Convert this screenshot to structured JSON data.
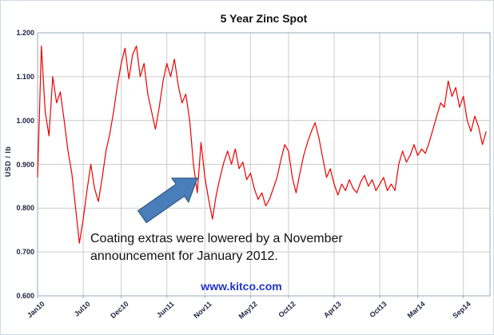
{
  "chart_data": {
    "type": "line",
    "title": "5 Year Zinc Spot",
    "ylabel": "USD / lb",
    "xlabel": "",
    "grid": true,
    "legend": "none",
    "ylim": [
      0.6,
      1.2
    ],
    "xlim": [
      0,
      59.5
    ],
    "y_ticks": [
      1.2,
      1.1,
      1.0,
      0.9,
      0.8,
      0.7,
      0.6
    ],
    "x_ticks": [
      {
        "label": "Jan10",
        "month": 0
      },
      {
        "label": "Jul10",
        "month": 6
      },
      {
        "label": "Dec10",
        "month": 11
      },
      {
        "label": "Jun11",
        "month": 17
      },
      {
        "label": "Nov11",
        "month": 22
      },
      {
        "label": "May12",
        "month": 28
      },
      {
        "label": "Oct12",
        "month": 33
      },
      {
        "label": "Apr13",
        "month": 39
      },
      {
        "label": "Oct13",
        "month": 45
      },
      {
        "label": "Mar14",
        "month": 50
      },
      {
        "label": "Sep14",
        "month": 56
      }
    ],
    "series": [
      {
        "name": "Zinc spot price",
        "color": "#ee0000",
        "x_unit": "months since Jan 2010",
        "x_start": 0,
        "x_step": 0.5,
        "values": [
          0.87,
          1.17,
          1.02,
          0.965,
          1.1,
          1.04,
          1.065,
          1.0,
          0.93,
          0.88,
          0.8,
          0.72,
          0.775,
          0.84,
          0.9,
          0.845,
          0.815,
          0.87,
          0.93,
          0.97,
          1.02,
          1.08,
          1.13,
          1.165,
          1.095,
          1.15,
          1.17,
          1.1,
          1.13,
          1.06,
          1.02,
          0.98,
          1.03,
          1.09,
          1.13,
          1.1,
          1.14,
          1.08,
          1.04,
          1.06,
          1.0,
          0.9,
          0.835,
          0.95,
          0.87,
          0.82,
          0.775,
          0.83,
          0.87,
          0.905,
          0.93,
          0.9,
          0.935,
          0.89,
          0.905,
          0.865,
          0.88,
          0.845,
          0.82,
          0.835,
          0.805,
          0.82,
          0.845,
          0.87,
          0.91,
          0.945,
          0.93,
          0.87,
          0.835,
          0.88,
          0.92,
          0.95,
          0.975,
          0.995,
          0.96,
          0.915,
          0.87,
          0.89,
          0.855,
          0.83,
          0.855,
          0.84,
          0.865,
          0.845,
          0.835,
          0.86,
          0.875,
          0.85,
          0.865,
          0.84,
          0.855,
          0.87,
          0.84,
          0.855,
          0.84,
          0.9,
          0.93,
          0.905,
          0.92,
          0.945,
          0.92,
          0.935,
          0.925,
          0.95,
          0.98,
          1.01,
          1.04,
          1.03,
          1.09,
          1.055,
          1.075,
          1.03,
          1.055,
          1.0,
          0.975,
          1.01,
          0.985,
          0.945,
          0.975
        ]
      }
    ],
    "colors": {
      "line": "#ee0000",
      "grid": "#cccccc",
      "frame": "#9aaabb"
    }
  },
  "annotation": {
    "text": "Coating extras were lowered by a November\nannouncement for January 2012.",
    "arrow_color": "#4a7ebb",
    "arrow_outline": "#3a648f"
  },
  "watermark": {
    "text": "www.kitco.com",
    "color": "#2233cc"
  }
}
